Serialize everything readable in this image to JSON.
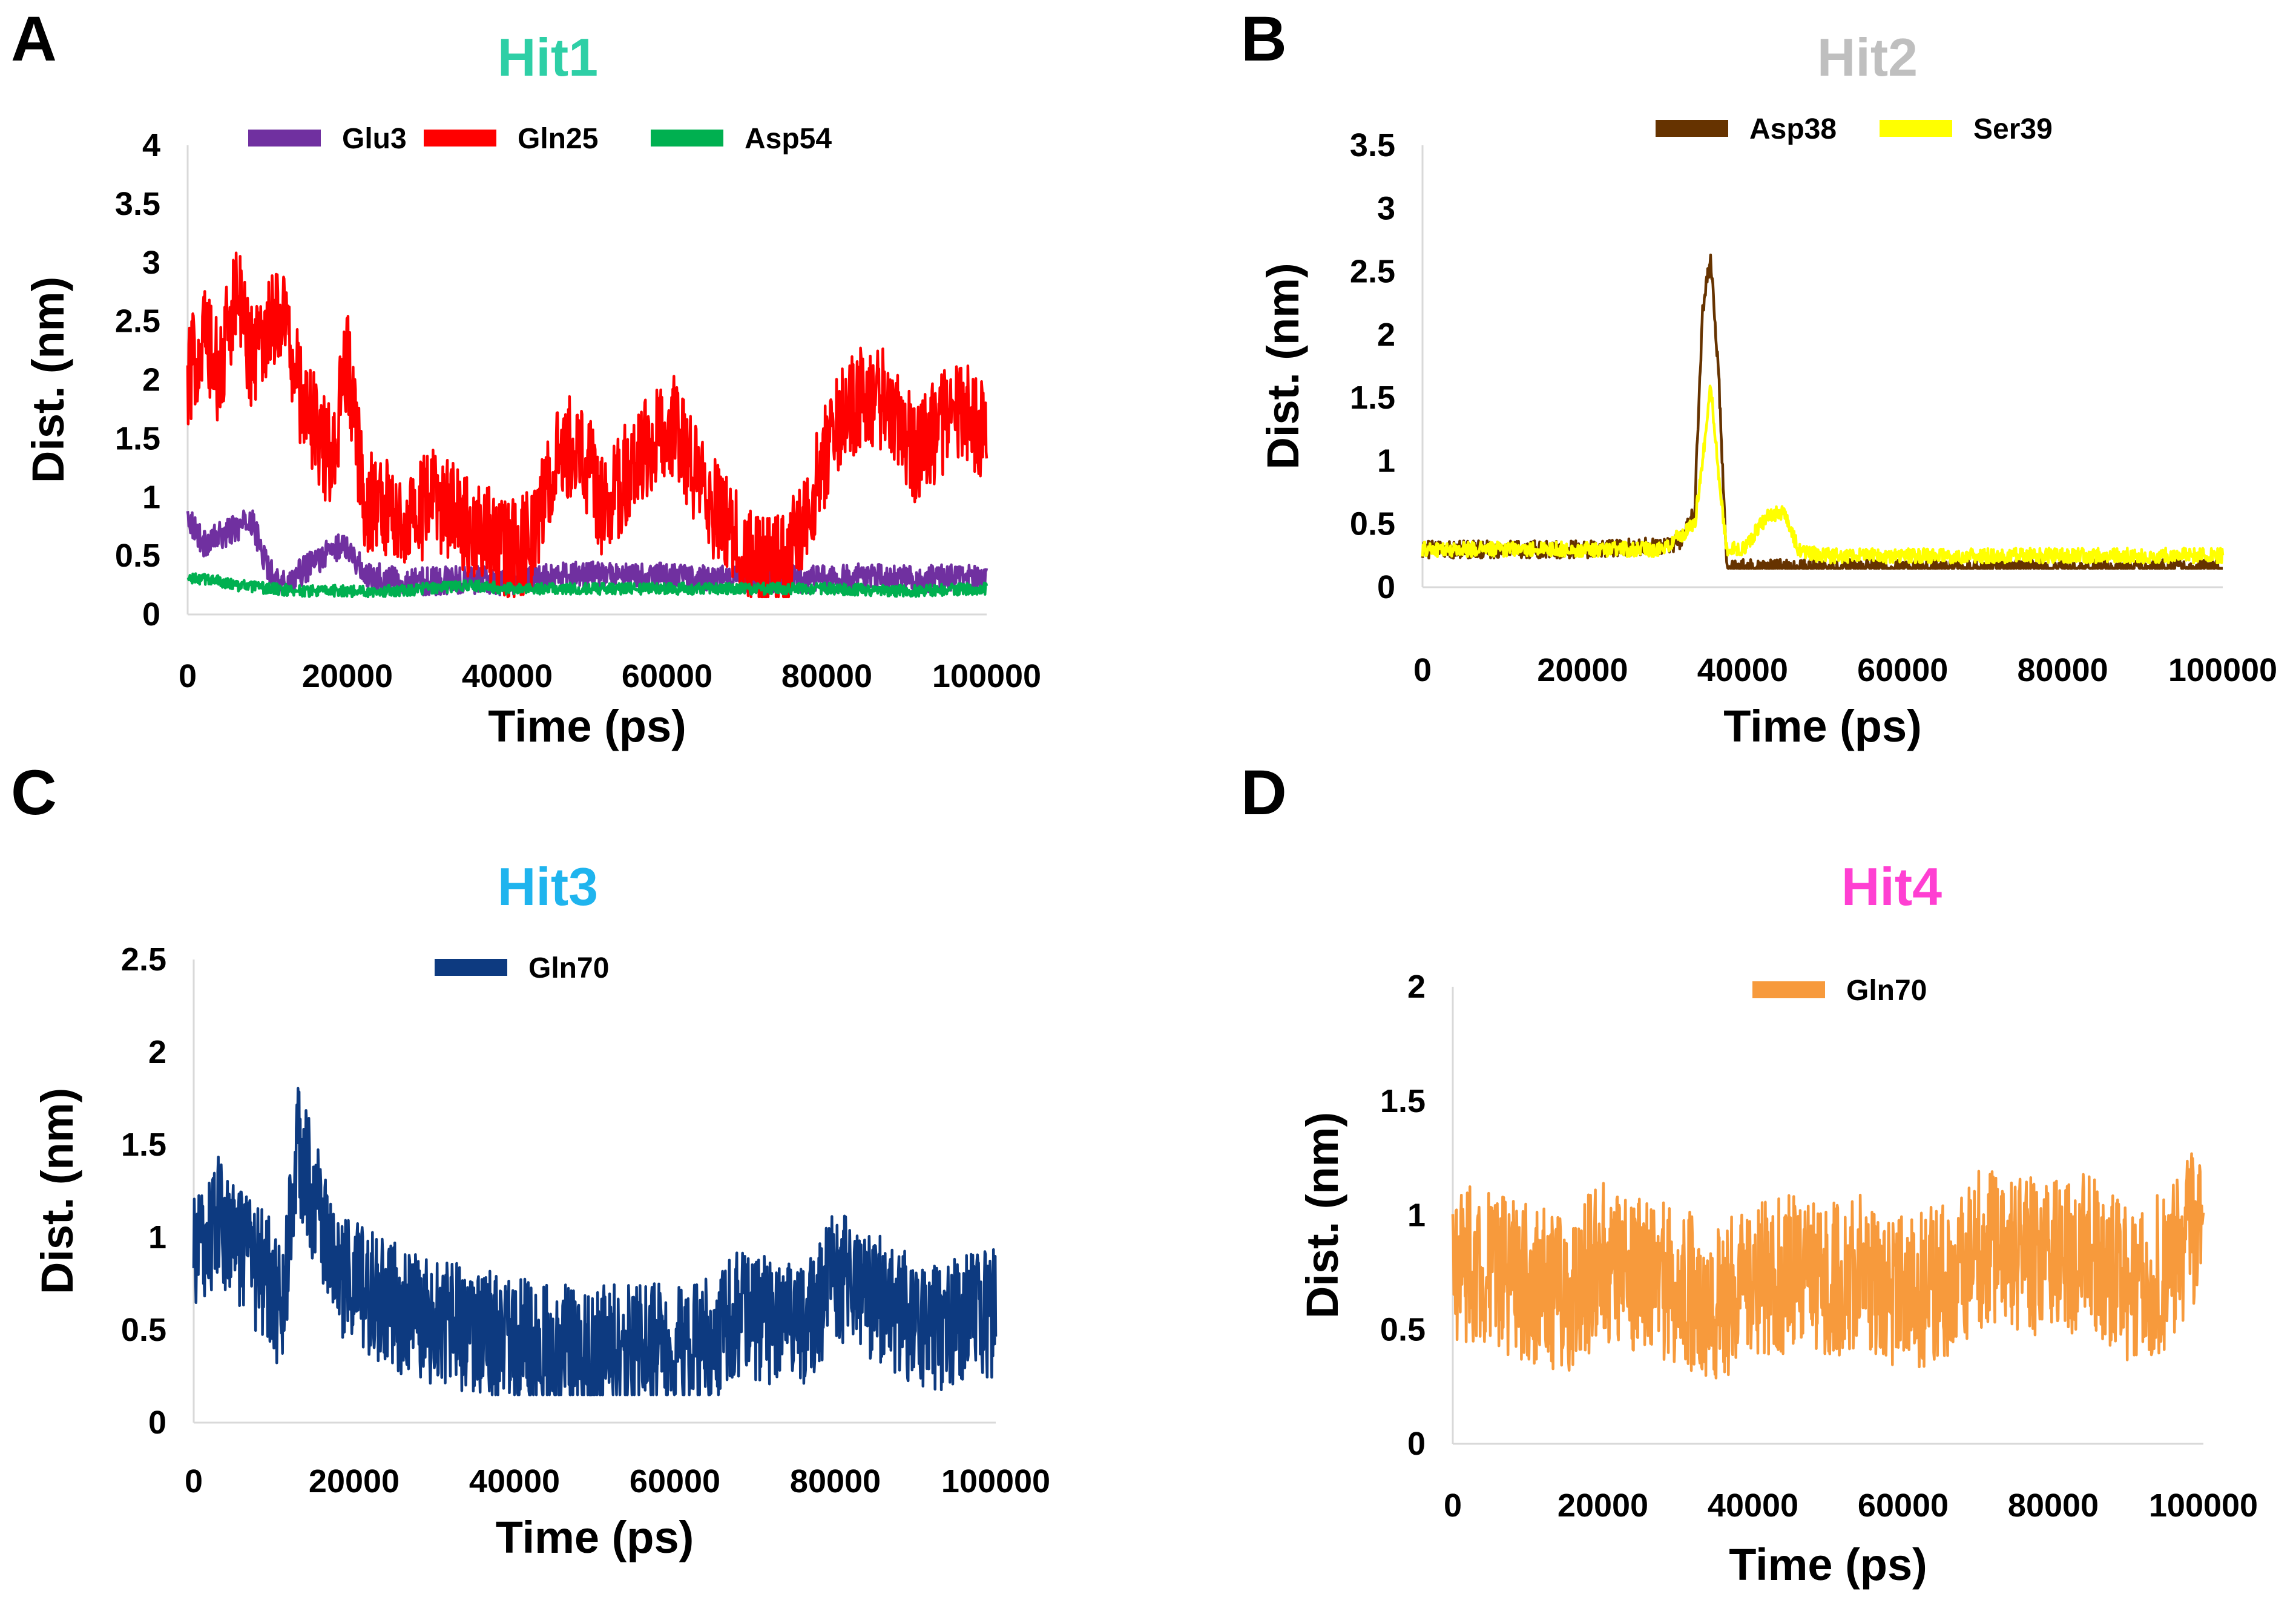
{
  "figure": {
    "panels": [
      {
        "letter": "A",
        "title": "Hit1",
        "title_color": "#2ecfa6",
        "xlabel": "Time (ps)",
        "ylabel": "Dist. (nm)",
        "xticks": [
          "0",
          "20000",
          "40000",
          "60000",
          "80000",
          "100000"
        ],
        "yticks": [
          "0",
          "0.5",
          "1",
          "1.5",
          "2",
          "2.5",
          "3",
          "3.5",
          "4"
        ],
        "legend": [
          {
            "name": "Glu3",
            "color": "#7030a0"
          },
          {
            "name": "Gln25",
            "color": "#ff0000"
          },
          {
            "name": "Asp54",
            "color": "#00b050"
          }
        ]
      },
      {
        "letter": "B",
        "title": "Hit2",
        "title_color": "#bfbfbf",
        "xlabel": "Time (ps)",
        "ylabel": "Dist. (nm)",
        "xticks": [
          "0",
          "20000",
          "40000",
          "60000",
          "80000",
          "100000"
        ],
        "yticks": [
          "0",
          "0.5",
          "1",
          "1.5",
          "2",
          "2.5",
          "3",
          "3.5"
        ],
        "legend": [
          {
            "name": "Asp38",
            "color": "#663300"
          },
          {
            "name": "Ser39",
            "color": "#ffff00"
          }
        ]
      },
      {
        "letter": "C",
        "title": "Hit3",
        "title_color": "#1fb4ee",
        "xlabel": "Time (ps)",
        "ylabel": "Dist. (nm)",
        "xticks": [
          "0",
          "20000",
          "40000",
          "60000",
          "80000",
          "100000"
        ],
        "yticks": [
          "0",
          "0.5",
          "1",
          "1.5",
          "2",
          "2.5"
        ],
        "legend": [
          {
            "name": "Gln70",
            "color": "#0d3a80"
          }
        ]
      },
      {
        "letter": "D",
        "title": "Hit4",
        "title_color": "#ff3fd2",
        "xlabel": "Time (ps)",
        "ylabel": "Dist. (nm)",
        "xticks": [
          "0",
          "20000",
          "40000",
          "60000",
          "80000",
          "100000"
        ],
        "yticks": [
          "0",
          "0.5",
          "1",
          "1.5",
          "2"
        ],
        "legend": [
          {
            "name": "Gln70",
            "color": "#f79a3c"
          }
        ]
      }
    ]
  },
  "chart_data": [
    {
      "type": "line",
      "title": "Hit1",
      "xlabel": "Time (ps)",
      "ylabel": "Dist. (nm)",
      "xlim": [
        0,
        100000
      ],
      "ylim": [
        0,
        4
      ],
      "series": [
        {
          "name": "Glu3",
          "color": "#7030a0",
          "x": [
            0,
            2000,
            5000,
            8000,
            10000,
            12000,
            15000,
            18000,
            20000,
            22000,
            25000,
            30000,
            35000,
            40000,
            45000,
            50000,
            55000,
            60000,
            65000,
            70000,
            75000,
            80000,
            85000,
            90000,
            95000,
            100000
          ],
          "y": [
            0.85,
            0.6,
            0.7,
            0.8,
            0.4,
            0.25,
            0.4,
            0.55,
            0.6,
            0.35,
            0.3,
            0.28,
            0.3,
            0.28,
            0.32,
            0.33,
            0.33,
            0.32,
            0.3,
            0.3,
            0.3,
            0.3,
            0.32,
            0.3,
            0.32,
            0.3
          ]
        },
        {
          "name": "Gln25",
          "color": "#ff0000",
          "x": [
            0,
            2000,
            4000,
            6000,
            8000,
            10000,
            12000,
            14000,
            16000,
            18000,
            20000,
            22000,
            25000,
            28000,
            31000,
            34000,
            37000,
            40000,
            43000,
            46000,
            49000,
            52000,
            55000,
            58000,
            61000,
            64000,
            67000,
            70000,
            73000,
            76000,
            79000,
            82000,
            85000,
            88000,
            91000,
            94000,
            97000,
            100000
          ],
          "y": [
            2.0,
            2.4,
            2.0,
            2.8,
            2.2,
            2.5,
            2.6,
            1.9,
            1.6,
            1.3,
            2.2,
            1.0,
            0.9,
            0.8,
            1.0,
            0.8,
            0.7,
            0.55,
            0.6,
            1.3,
            1.5,
            0.9,
            1.2,
            1.5,
            1.6,
            1.1,
            0.8,
            0.5,
            0.4,
            0.6,
            1.2,
            1.7,
            1.9,
            1.8,
            1.4,
            1.6,
            1.8,
            1.5
          ]
        },
        {
          "name": "Asp54",
          "color": "#00b050",
          "x": [
            0,
            3000,
            6000,
            10000,
            15000,
            20000,
            25000,
            30000,
            35000,
            40000,
            50000,
            60000,
            70000,
            80000,
            90000,
            100000
          ],
          "y": [
            0.3,
            0.3,
            0.25,
            0.22,
            0.2,
            0.2,
            0.2,
            0.22,
            0.25,
            0.22,
            0.22,
            0.22,
            0.22,
            0.22,
            0.2,
            0.22
          ]
        }
      ]
    },
    {
      "type": "line",
      "title": "Hit2",
      "xlabel": "Time (ps)",
      "ylabel": "Dist. (nm)",
      "xlim": [
        0,
        100000
      ],
      "ylim": [
        0,
        3.5
      ],
      "series": [
        {
          "name": "Asp38",
          "color": "#663300",
          "x": [
            0,
            10000,
            20000,
            28000,
            32000,
            34000,
            35000,
            36000,
            37000,
            38000,
            40000,
            50000,
            60000,
            70000,
            80000,
            90000,
            100000
          ],
          "y": [
            0.3,
            0.3,
            0.3,
            0.32,
            0.35,
            0.6,
            2.2,
            2.6,
            1.7,
            0.15,
            0.15,
            0.15,
            0.15,
            0.15,
            0.15,
            0.15,
            0.15
          ]
        },
        {
          "name": "Ser39",
          "color": "#ffff00",
          "x": [
            0,
            10000,
            20000,
            30000,
            34000,
            35000,
            36000,
            37000,
            38000,
            40000,
            43000,
            45000,
            47000,
            50000,
            60000,
            70000,
            80000,
            90000,
            100000
          ],
          "y": [
            0.3,
            0.3,
            0.3,
            0.3,
            0.5,
            1.0,
            1.6,
            0.9,
            0.3,
            0.3,
            0.55,
            0.6,
            0.3,
            0.25,
            0.25,
            0.25,
            0.25,
            0.25,
            0.25
          ]
        }
      ]
    },
    {
      "type": "line",
      "title": "Hit3",
      "xlabel": "Time (ps)",
      "ylabel": "Dist. (nm)",
      "xlim": [
        0,
        100000
      ],
      "ylim": [
        0,
        2.5
      ],
      "series": [
        {
          "name": "Gln70",
          "color": "#0d3a80",
          "x": [
            0,
            3000,
            6000,
            9000,
            11000,
            13000,
            15000,
            18000,
            22000,
            26000,
            30000,
            35000,
            40000,
            45000,
            50000,
            55000,
            60000,
            65000,
            68000,
            72000,
            76000,
            80000,
            84000,
            88000,
            92000,
            96000,
            100000
          ],
          "y": [
            0.9,
            1.1,
            0.9,
            0.8,
            0.6,
            1.5,
            1.2,
            0.8,
            0.7,
            0.6,
            0.55,
            0.5,
            0.45,
            0.4,
            0.4,
            0.4,
            0.42,
            0.45,
            0.6,
            0.55,
            0.5,
            0.8,
            0.7,
            0.6,
            0.5,
            0.55,
            0.6
          ]
        }
      ]
    },
    {
      "type": "line",
      "title": "Hit4",
      "xlabel": "Time (ps)",
      "ylabel": "Dist. (nm)",
      "xlim": [
        0,
        100000
      ],
      "ylim": [
        0,
        2
      ],
      "series": [
        {
          "name": "Gln70",
          "color": "#f79a3c",
          "x": [
            0,
            5000,
            10000,
            15000,
            20000,
            25000,
            30000,
            35000,
            40000,
            45000,
            50000,
            55000,
            60000,
            65000,
            70000,
            75000,
            80000,
            85000,
            90000,
            95000,
            100000
          ],
          "y": [
            0.8,
            0.75,
            0.7,
            0.65,
            0.8,
            0.75,
            0.7,
            0.6,
            0.7,
            0.75,
            0.7,
            0.75,
            0.65,
            0.7,
            0.85,
            0.85,
            0.8,
            0.85,
            0.7,
            0.75,
            1.0
          ]
        }
      ]
    }
  ]
}
